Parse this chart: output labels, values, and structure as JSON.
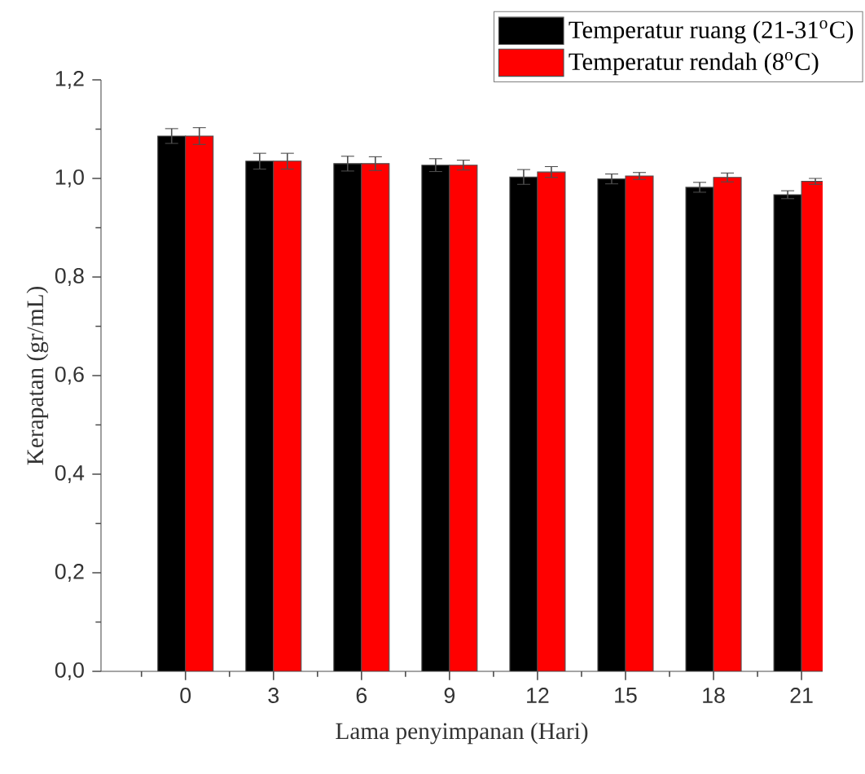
{
  "chart_data": {
    "type": "bar",
    "xlabel": "Lama penyimpanan (Hari)",
    "ylabel": "Kerapatan (gr/mL)",
    "categories": [
      "0",
      "3",
      "6",
      "9",
      "12",
      "15",
      "18",
      "21"
    ],
    "series": [
      {
        "name": "Temperatur ruang (21-31$^{o}$C)",
        "color": "#000000",
        "values": [
          1.086,
          1.035,
          1.03,
          1.027,
          1.003,
          0.999,
          0.982,
          0.967
        ],
        "errors": [
          0.015,
          0.016,
          0.015,
          0.013,
          0.015,
          0.01,
          0.01,
          0.008
        ]
      },
      {
        "name": "Temperatur rendah (8$^{o}$C)",
        "color": "#ff0000",
        "values": [
          1.086,
          1.035,
          1.03,
          1.027,
          1.013,
          1.005,
          1.002,
          0.994
        ],
        "errors": [
          0.017,
          0.016,
          0.014,
          0.01,
          0.011,
          0.007,
          0.009,
          0.006
        ]
      }
    ],
    "ylim": [
      0,
      1.2
    ],
    "yticks": [
      {
        "value": 0,
        "label": "0,0"
      },
      {
        "value": 0.1,
        "label": null
      },
      {
        "value": 0.2,
        "label": "0,2"
      },
      {
        "value": 0.3,
        "label": null
      },
      {
        "value": 0.4,
        "label": "0,4"
      },
      {
        "value": 0.5,
        "label": null
      },
      {
        "value": 0.6,
        "label": "0,6"
      },
      {
        "value": 0.7,
        "label": null
      },
      {
        "value": 0.8,
        "label": "0,8"
      },
      {
        "value": 0.9,
        "label": null
      },
      {
        "value": 1.0,
        "label": "1,0"
      },
      {
        "value": 1.1,
        "label": null
      },
      {
        "value": 1.2,
        "label": "1,2"
      }
    ],
    "legend": "top right"
  }
}
